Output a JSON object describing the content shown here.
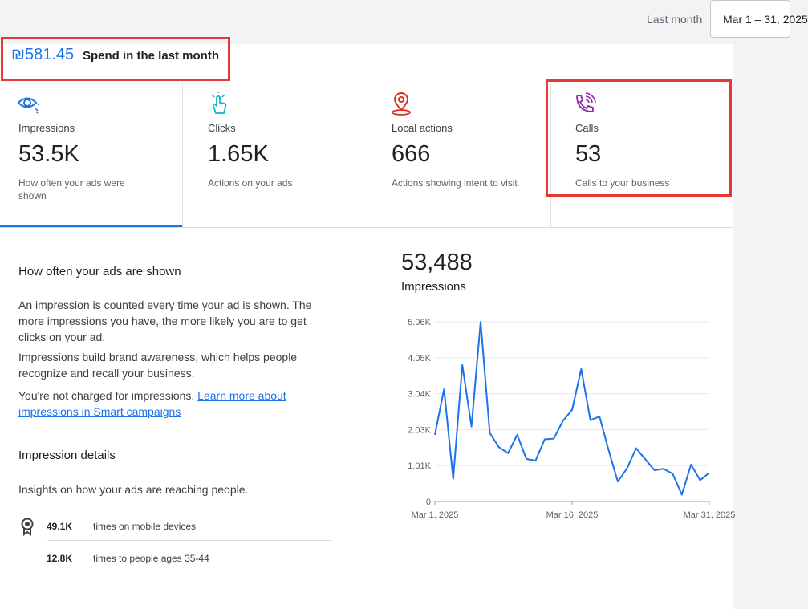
{
  "header": {
    "period_label": "Last month",
    "date_range": "Mar 1 – 31, 2025"
  },
  "spend": {
    "amount": "₪581.45",
    "label": "Spend in the last month"
  },
  "metrics": [
    {
      "icon": "eye-icon",
      "label": "Impressions",
      "value": "53.5K",
      "desc": "How often your ads were shown",
      "selected": true
    },
    {
      "icon": "pointer-click-icon",
      "label": "Clicks",
      "value": "1.65K",
      "desc": "Actions on your ads"
    },
    {
      "icon": "location-pin-icon",
      "label": "Local actions",
      "value": "666",
      "desc": "Actions showing intent to visit"
    },
    {
      "icon": "phone-call-icon",
      "label": "Calls",
      "value": "53",
      "desc": "Calls to your business"
    }
  ],
  "info": {
    "title": "How often your ads are shown",
    "p1": "An impression is counted every time your ad is shown. The more impressions you have, the more likely you are to get clicks on your ad.",
    "p2": "Impressions build brand awareness, which helps people recognize and recall your business.",
    "p3_text": "You're not charged for impressions. ",
    "p3_link": "Learn more about impressions in Smart campaigns"
  },
  "details": {
    "title": "Impression details",
    "subtitle": "Insights on how your ads are reaching people.",
    "rows": [
      {
        "icon": "badge-icon",
        "value": "49.1K",
        "text": "times on mobile devices"
      },
      {
        "icon": "",
        "value": "12.8K",
        "text": "times to people ages 35-44"
      }
    ]
  },
  "chart_summary": {
    "total": "53,488",
    "label": "Impressions"
  },
  "colors": {
    "accent": "#1a73e8",
    "highlight": "#e53935",
    "clicks_icon": "#12b5cb",
    "local_icon": "#d93025",
    "calls_icon": "#8e24aa"
  },
  "chart_data": {
    "type": "line",
    "title": "",
    "xlabel": "",
    "ylabel": "",
    "x": [
      "Mar 1",
      "Mar 2",
      "Mar 3",
      "Mar 4",
      "Mar 5",
      "Mar 6",
      "Mar 7",
      "Mar 8",
      "Mar 9",
      "Mar 10",
      "Mar 11",
      "Mar 12",
      "Mar 13",
      "Mar 14",
      "Mar 15",
      "Mar 16",
      "Mar 17",
      "Mar 18",
      "Mar 19",
      "Mar 20",
      "Mar 21",
      "Mar 22",
      "Mar 23",
      "Mar 24",
      "Mar 25",
      "Mar 26",
      "Mar 27",
      "Mar 28",
      "Mar 29",
      "Mar 30",
      "Mar 31"
    ],
    "x_tick_labels": [
      "Mar 1, 2025",
      "Mar 16, 2025",
      "Mar 31, 2025"
    ],
    "series": [
      {
        "values": [
          1880,
          3160,
          640,
          3840,
          2110,
          5060,
          1930,
          1530,
          1360,
          1880,
          1200,
          1150,
          1750,
          1770,
          2270,
          2580,
          3730,
          2290,
          2390,
          1440,
          560,
          930,
          1500,
          1190,
          880,
          920,
          780,
          190,
          1040,
          600,
          810
        ]
      }
    ],
    "y_ticks": [
      "0",
      "1.01K",
      "2.03K",
      "3.04K",
      "4.05K",
      "5.06K"
    ],
    "y_tick_values": [
      0,
      1012,
      2024,
      3036,
      4048,
      5060
    ],
    "ylim": [
      0,
      5060
    ],
    "grid": true,
    "color": "#1a73e8"
  }
}
